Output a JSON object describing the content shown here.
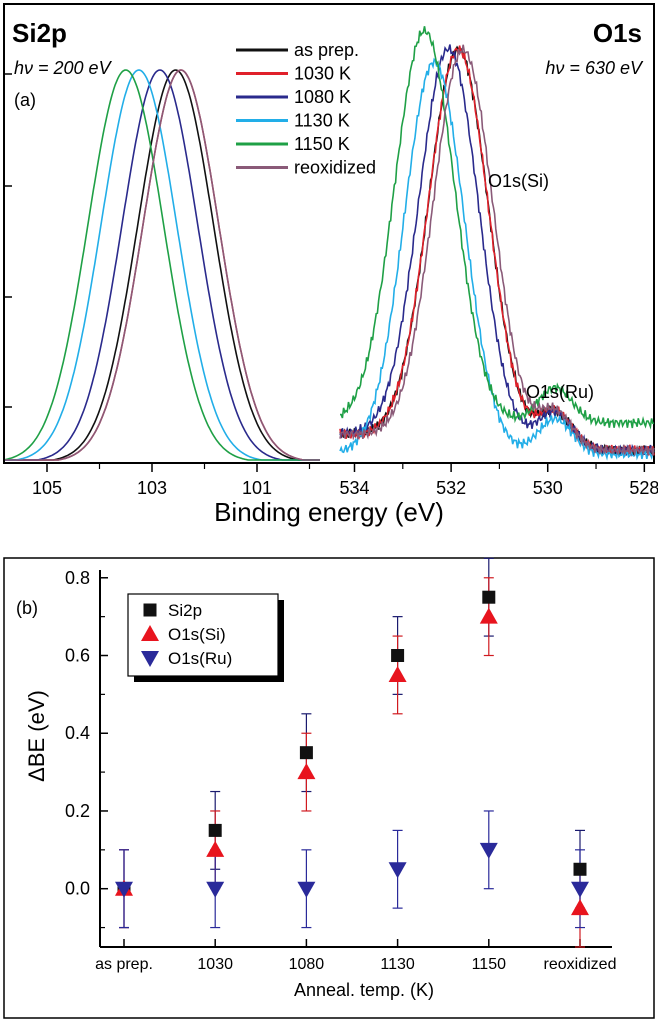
{
  "chart_data": [
    {
      "type": "line",
      "panel_label": "(a)",
      "xlabel": "Binding energy (eV)",
      "legend_position": "top-center",
      "colors": {
        "as prep.": "#111111",
        "1030 K": "#e0202a",
        "1080 K": "#2a2a8c",
        "1130 K": "#22aee8",
        "1150 K": "#1fa046",
        "reoxidized": "#8a5a78"
      },
      "subplots": [
        {
          "title": "Si2p",
          "photon_energy": "hν = 200 eV",
          "xlim": [
            105.8,
            99.8
          ],
          "xticks": [
            "105",
            "103",
            "101"
          ],
          "series": [
            {
              "name": "as prep.",
              "peak_x": 102.55,
              "values_note_peak_height": 1.0
            },
            {
              "name": "1030 K",
              "peak_x": 102.45,
              "values_note_peak_height": 1.0
            },
            {
              "name": "1080 K",
              "peak_x": 102.85,
              "values_note_peak_height": 1.0
            },
            {
              "name": "1130 K",
              "peak_x": 103.25,
              "values_note_peak_height": 1.0
            },
            {
              "name": "1150 K",
              "peak_x": 103.5,
              "values_note_peak_height": 1.0
            },
            {
              "name": "reoxidized",
              "peak_x": 102.45,
              "values_note_peak_height": 1.0
            }
          ]
        },
        {
          "title": "O1s",
          "photon_energy": "hν = 630 eV",
          "xlim": [
            534.3,
            527.8
          ],
          "xticks": [
            "534",
            "532",
            "530",
            "528"
          ],
          "annotations": [
            "O1s(Si)",
            "O1s(Ru)"
          ],
          "series": [
            {
              "name": "as prep.",
              "peak_x": 531.85
            },
            {
              "name": "1030 K",
              "peak_x": 531.85
            },
            {
              "name": "1080 K",
              "peak_x": 532.05
            },
            {
              "name": "1130 K",
              "peak_x": 532.35
            },
            {
              "name": "1150 K",
              "peak_x": 532.55
            },
            {
              "name": "reoxidized",
              "peak_x": 531.75
            }
          ]
        }
      ]
    },
    {
      "type": "scatter",
      "panel_label": "(b)",
      "xlabel": "Anneal. temp. (K)",
      "ylabel": "ΔBE (eV)",
      "categories": [
        "as prep.",
        "1030",
        "1080",
        "1130",
        "1150",
        "reoxidized"
      ],
      "ylim": [
        -0.15,
        0.82
      ],
      "yticks": [
        "0.0",
        "0.2",
        "0.4",
        "0.6",
        "0.8"
      ],
      "legend_position": "top-left",
      "series": [
        {
          "name": "Si2p",
          "marker": "square",
          "color": "#111111",
          "errcolor": "#1a1a6e",
          "values": [
            0.0,
            0.15,
            0.35,
            0.6,
            0.75,
            0.05
          ],
          "errors": [
            0.1,
            0.1,
            0.1,
            0.1,
            0.1,
            0.1
          ]
        },
        {
          "name": "O1s(Si)",
          "marker": "triangle-up",
          "color": "#e8141e",
          "errcolor": "#d01a20",
          "values": [
            0.0,
            0.1,
            0.3,
            0.55,
            0.7,
            -0.05
          ],
          "errors": [
            0.1,
            0.1,
            0.1,
            0.1,
            0.1,
            0.1
          ]
        },
        {
          "name": "O1s(Ru)",
          "marker": "triangle-down",
          "color": "#2a2a9a",
          "errcolor": "#2a2a9a",
          "values": [
            0.0,
            0.0,
            0.0,
            0.05,
            0.1,
            0.0
          ],
          "errors": [
            0.1,
            0.1,
            0.1,
            0.1,
            0.1,
            0.1
          ]
        }
      ]
    }
  ]
}
